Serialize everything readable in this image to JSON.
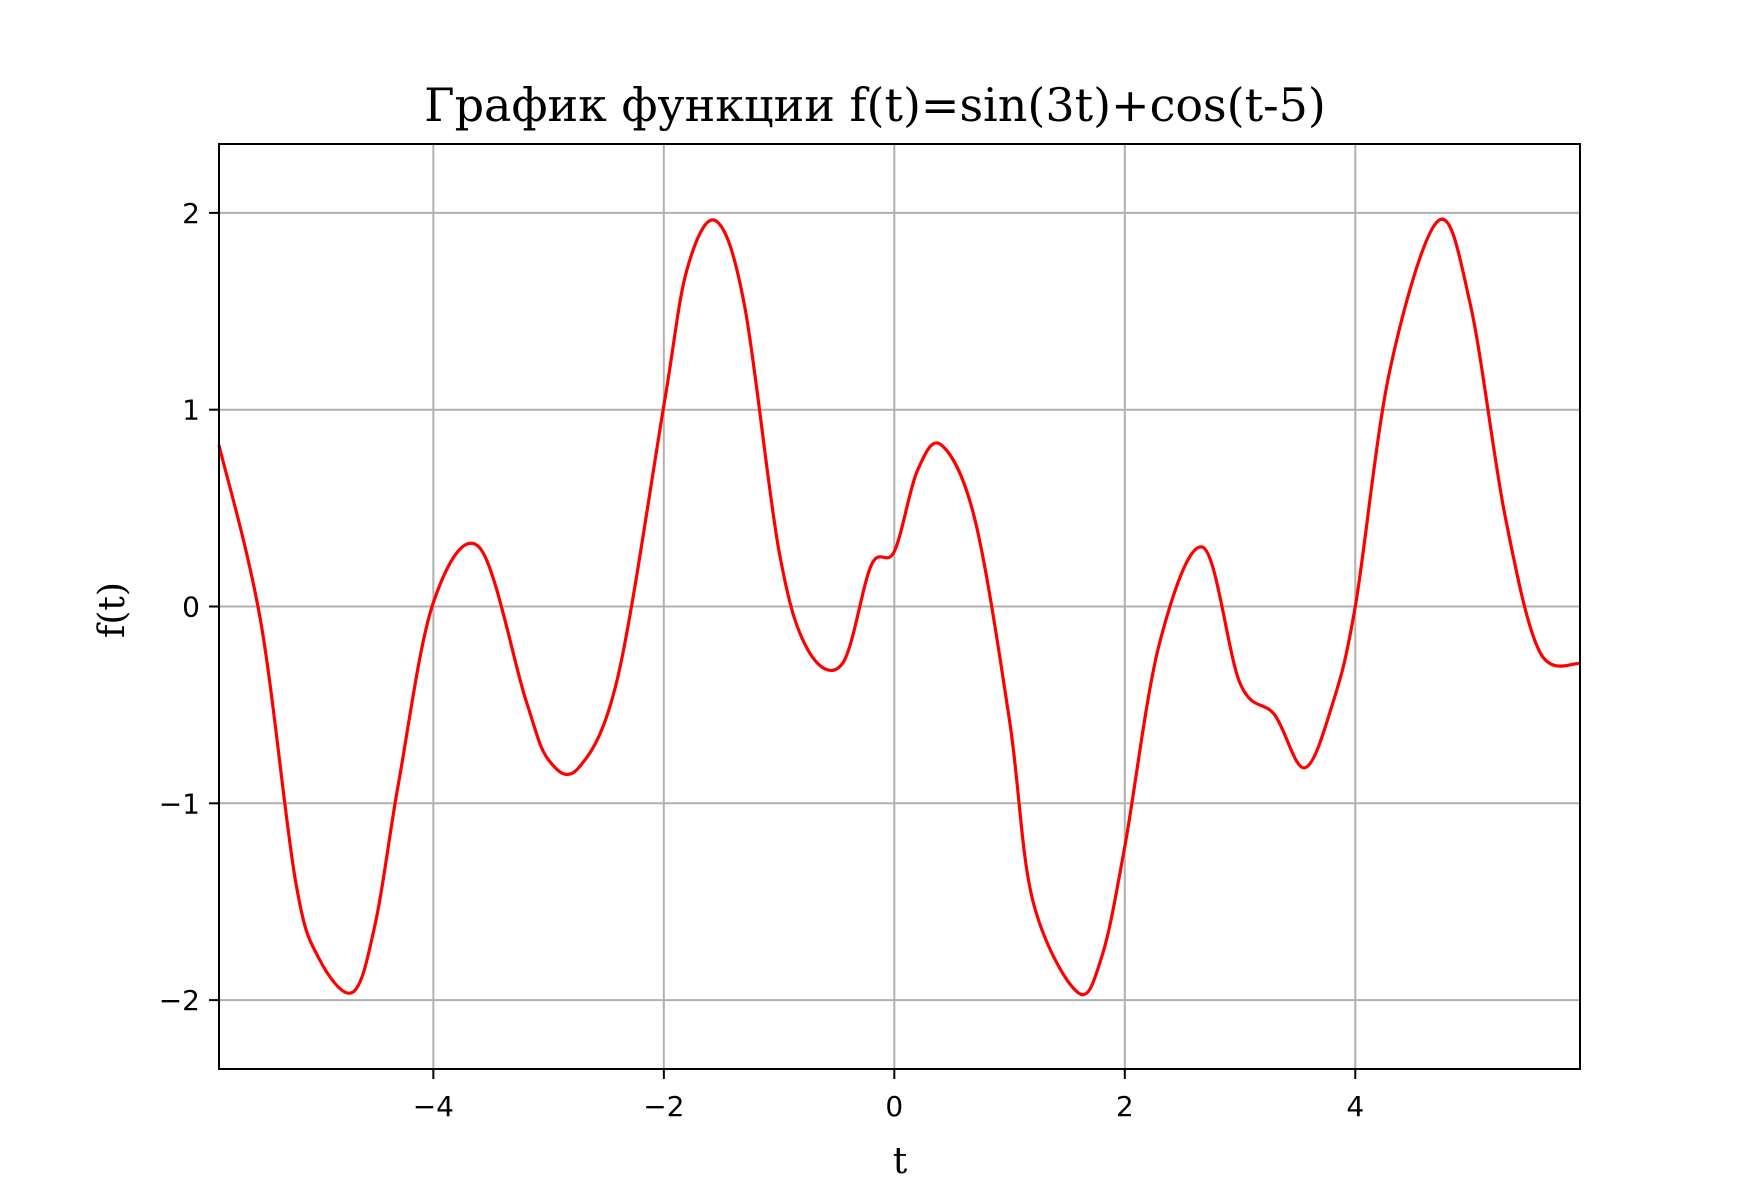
{
  "chart_data": {
    "type": "line",
    "title": "График функции f(t)=sin(3t)+cos(t-5)",
    "xlabel": "t",
    "ylabel": "f(t)",
    "xlim": [
      -5.86,
      5.95
    ],
    "ylim": [
      -2.35,
      2.35
    ],
    "grid": true,
    "x_ticks": [
      -4,
      -2,
      0,
      2,
      4
    ],
    "x_tick_labels": [
      "−4",
      "−2",
      "0",
      "2",
      "4"
    ],
    "y_ticks": [
      -2,
      -1,
      0,
      1,
      2
    ],
    "y_tick_labels": [
      "−2",
      "−1",
      "0",
      "1",
      "2"
    ],
    "series": [
      {
        "color": "#ff0000",
        "x": [
          -5.86,
          -5.5,
          -5.2,
          -5.0,
          -4.7,
          -4.5,
          -4.3,
          -4.0,
          -3.6,
          -3.2,
          -3.0,
          -2.74,
          -2.4,
          -2.0,
          -1.8,
          -1.55,
          -1.3,
          -1.0,
          -0.75,
          -0.45,
          -0.2,
          0.0,
          0.2,
          0.41,
          0.7,
          1.0,
          1.2,
          1.59,
          1.8,
          2.0,
          2.3,
          2.68,
          3.0,
          3.3,
          3.56,
          3.8,
          4.0,
          4.3,
          4.72,
          5.0,
          5.3,
          5.6,
          5.95
        ],
        "y": [
          0.82,
          -0.07,
          -1.38,
          -1.78,
          -1.96,
          -1.6,
          -0.89,
          0.02,
          0.3,
          -0.47,
          -0.78,
          -0.82,
          -0.36,
          1.02,
          1.71,
          1.96,
          1.53,
          0.28,
          -0.22,
          -0.29,
          0.21,
          0.28,
          0.69,
          0.82,
          0.44,
          -0.58,
          -1.49,
          -1.96,
          -1.78,
          -1.22,
          -0.19,
          0.3,
          -0.39,
          -0.55,
          -0.82,
          -0.5,
          0.0,
          1.2,
          1.96,
          1.53,
          0.46,
          -0.23,
          -0.29
        ]
      }
    ]
  }
}
